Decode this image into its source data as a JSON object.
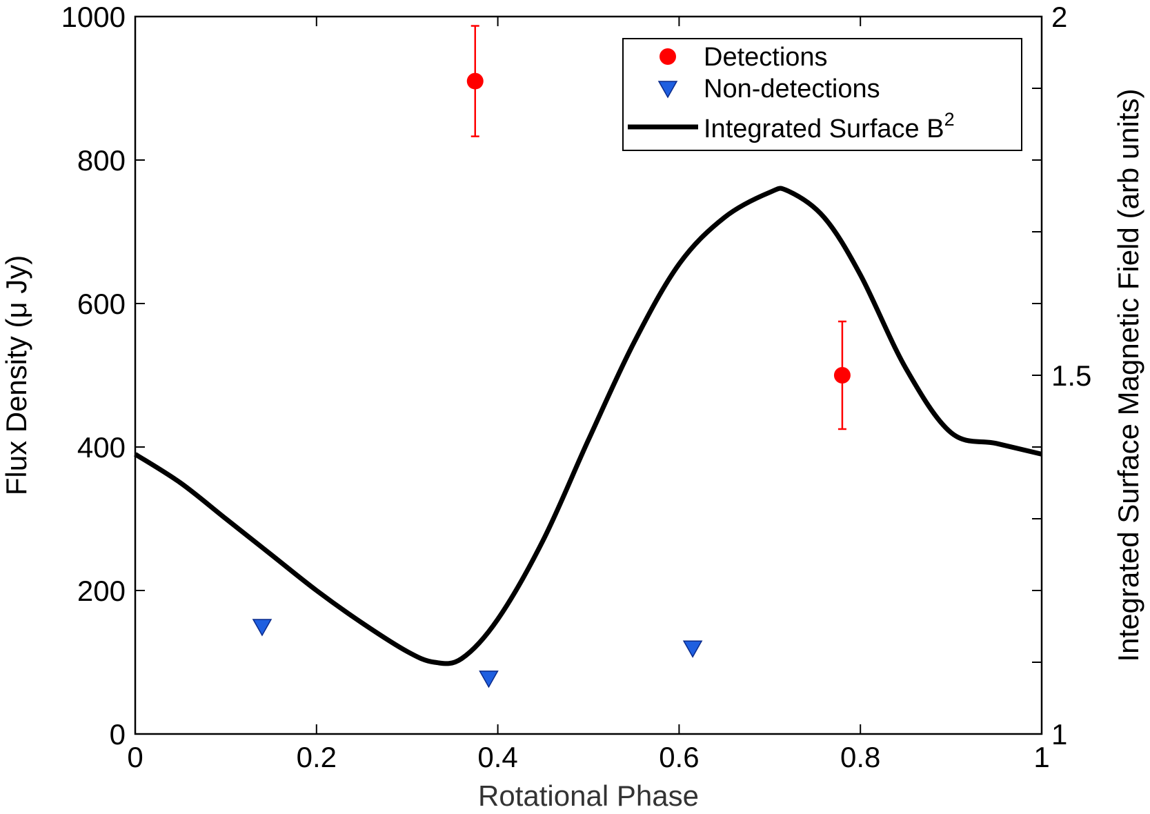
{
  "chart_data": {
    "type": "scatter",
    "xlabel": "Rotational Phase",
    "ylabel": "Flux Density",
    "ylabel_unit": "(μ Jy)",
    "y2label": "Integrated Surface Magnetic Field (arb units)",
    "xlim": [
      0,
      1
    ],
    "ylim": [
      0,
      1000
    ],
    "y2lim": [
      1,
      2
    ],
    "xticks": [
      "0",
      "0.2",
      "0.4",
      "0.6",
      "0.8",
      "1"
    ],
    "yticks": [
      "0",
      "200",
      "400",
      "600",
      "800",
      "1000"
    ],
    "y2ticks": [
      "1",
      "1.5",
      "2"
    ],
    "grid": false,
    "legend_position": "top-right",
    "series": [
      {
        "name": "Detections",
        "kind": "scatter-errorbar",
        "marker": "circle",
        "color": "#ff0000",
        "points": [
          {
            "x": 0.375,
            "y": 910,
            "err": 77
          },
          {
            "x": 0.78,
            "y": 500,
            "err": 75
          }
        ]
      },
      {
        "name": "Non-detections",
        "kind": "scatter",
        "marker": "triangle-down",
        "color": "#1f5fe0",
        "points": [
          {
            "x": 0.14,
            "y": 150
          },
          {
            "x": 0.39,
            "y": 78
          },
          {
            "x": 0.615,
            "y": 120
          }
        ]
      },
      {
        "name": "Integrated Surface B",
        "name_superscript": "2",
        "kind": "line",
        "axis": "right",
        "color": "#000000",
        "points": [
          {
            "x": 0.0,
            "y": 1.39
          },
          {
            "x": 0.05,
            "y": 1.35
          },
          {
            "x": 0.1,
            "y": 1.3
          },
          {
            "x": 0.15,
            "y": 1.25
          },
          {
            "x": 0.2,
            "y": 1.2
          },
          {
            "x": 0.25,
            "y": 1.155
          },
          {
            "x": 0.3,
            "y": 1.115
          },
          {
            "x": 0.33,
            "y": 1.1
          },
          {
            "x": 0.36,
            "y": 1.105
          },
          {
            "x": 0.4,
            "y": 1.16
          },
          {
            "x": 0.45,
            "y": 1.27
          },
          {
            "x": 0.5,
            "y": 1.41
          },
          {
            "x": 0.55,
            "y": 1.545
          },
          {
            "x": 0.6,
            "y": 1.655
          },
          {
            "x": 0.65,
            "y": 1.72
          },
          {
            "x": 0.7,
            "y": 1.755
          },
          {
            "x": 0.72,
            "y": 1.757
          },
          {
            "x": 0.76,
            "y": 1.72
          },
          {
            "x": 0.8,
            "y": 1.64
          },
          {
            "x": 0.85,
            "y": 1.51
          },
          {
            "x": 0.9,
            "y": 1.42
          },
          {
            "x": 0.95,
            "y": 1.405
          },
          {
            "x": 1.0,
            "y": 1.39
          }
        ]
      }
    ]
  }
}
